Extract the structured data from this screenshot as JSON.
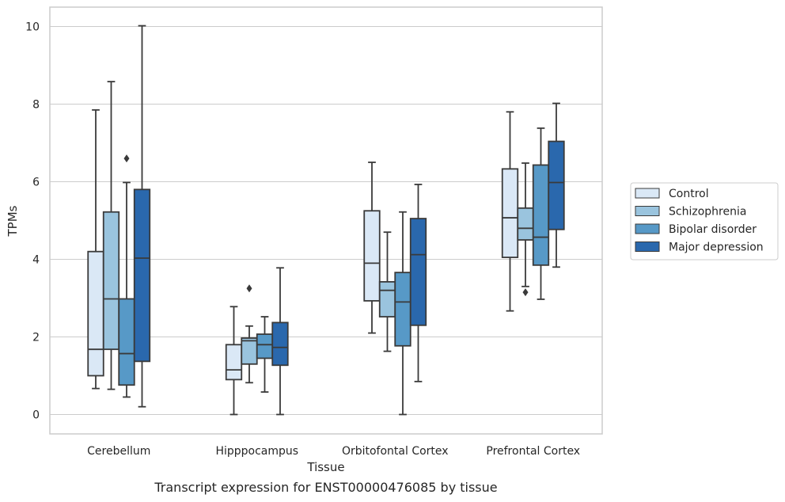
{
  "chart_data": {
    "type": "box",
    "caption": "Transcript expression for ENST00000476085 by tissue",
    "xlabel": "Tissue",
    "ylabel": "TPMs",
    "ylim": [
      -0.5,
      10.5
    ],
    "yticks": [
      "0",
      "2",
      "4",
      "6",
      "8",
      "10"
    ],
    "categories": [
      "Cerebellum",
      "Hipppocampus",
      "Orbitofontal Cortex",
      "Prefrontal Cortex"
    ],
    "grid": "horizontal",
    "legend_position": "right",
    "series": [
      {
        "name": "Control",
        "color": "#dae8f6",
        "boxes": [
          {
            "whisker_low": 0.67,
            "q1": 1.0,
            "median": 1.68,
            "q3": 4.2,
            "whisker_high": 7.85,
            "outliers": []
          },
          {
            "whisker_low": 0.0,
            "q1": 0.9,
            "median": 1.15,
            "q3": 1.8,
            "whisker_high": 2.78,
            "outliers": []
          },
          {
            "whisker_low": 2.1,
            "q1": 2.93,
            "median": 3.9,
            "q3": 5.25,
            "whisker_high": 6.5,
            "outliers": []
          },
          {
            "whisker_low": 2.67,
            "q1": 4.05,
            "median": 5.07,
            "q3": 6.33,
            "whisker_high": 7.8,
            "outliers": []
          }
        ]
      },
      {
        "name": "Schizophrenia",
        "color": "#9ac4de",
        "boxes": [
          {
            "whisker_low": 0.65,
            "q1": 1.68,
            "median": 2.98,
            "q3": 5.22,
            "whisker_high": 8.58,
            "outliers": []
          },
          {
            "whisker_low": 0.82,
            "q1": 1.3,
            "median": 1.9,
            "q3": 1.97,
            "whisker_high": 2.28,
            "outliers": [
              3.25
            ]
          },
          {
            "whisker_low": 1.63,
            "q1": 2.52,
            "median": 3.2,
            "q3": 3.42,
            "whisker_high": 4.7,
            "outliers": []
          },
          {
            "whisker_low": 3.3,
            "q1": 4.5,
            "median": 4.8,
            "q3": 5.32,
            "whisker_high": 6.48,
            "outliers": [
              3.15
            ]
          }
        ]
      },
      {
        "name": "Bipolar disorder",
        "color": "#5799c7",
        "boxes": [
          {
            "whisker_low": 0.45,
            "q1": 0.76,
            "median": 1.57,
            "q3": 2.98,
            "whisker_high": 5.98,
            "outliers": [
              6.6
            ]
          },
          {
            "whisker_low": 0.58,
            "q1": 1.45,
            "median": 1.8,
            "q3": 2.07,
            "whisker_high": 2.52,
            "outliers": []
          },
          {
            "whisker_low": 0.0,
            "q1": 1.77,
            "median": 2.9,
            "q3": 3.66,
            "whisker_high": 5.22,
            "outliers": []
          },
          {
            "whisker_low": 2.97,
            "q1": 3.85,
            "median": 4.57,
            "q3": 6.43,
            "whisker_high": 7.38,
            "outliers": []
          }
        ]
      },
      {
        "name": "Major depression",
        "color": "#2a68ad",
        "boxes": [
          {
            "whisker_low": 0.2,
            "q1": 1.37,
            "median": 4.03,
            "q3": 5.8,
            "whisker_high": 10.02,
            "outliers": []
          },
          {
            "whisker_low": 0.0,
            "q1": 1.27,
            "median": 1.73,
            "q3": 2.37,
            "whisker_high": 3.78,
            "outliers": []
          },
          {
            "whisker_low": 0.85,
            "q1": 2.3,
            "median": 4.12,
            "q3": 5.05,
            "whisker_high": 5.93,
            "outliers": []
          },
          {
            "whisker_low": 3.8,
            "q1": 4.77,
            "median": 5.98,
            "q3": 7.04,
            "whisker_high": 8.02,
            "outliers": []
          }
        ]
      }
    ]
  }
}
